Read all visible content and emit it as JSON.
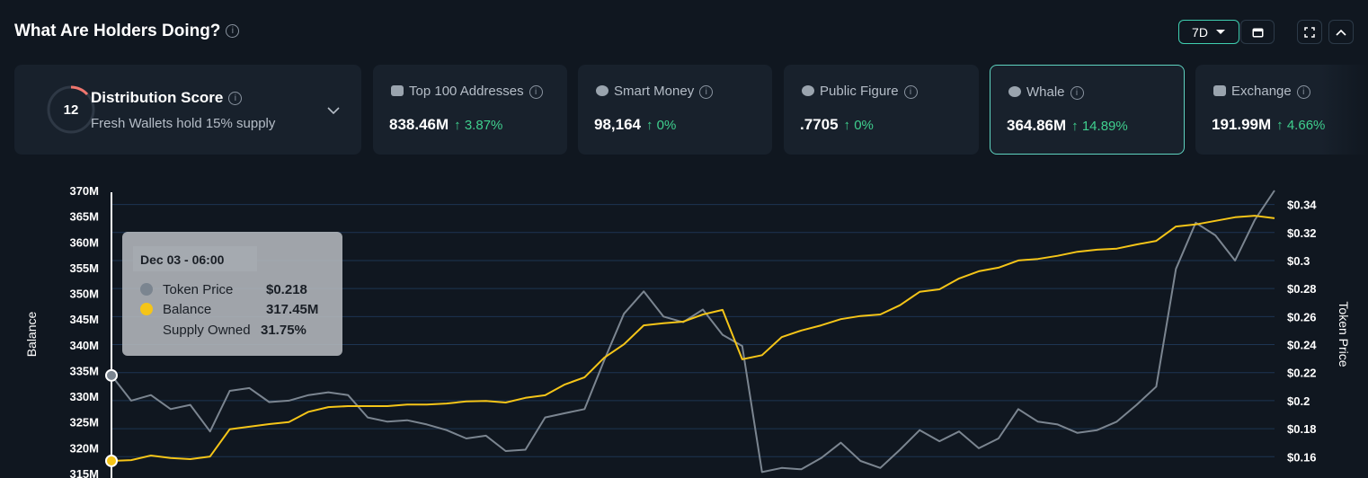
{
  "header": {
    "title": "What Are Holders Doing?",
    "period": "7D"
  },
  "score_card": {
    "score": "12",
    "title": "Distribution Score",
    "subtitle": "Fresh Wallets hold 15% supply"
  },
  "cards": [
    {
      "label": "Top 100 Addresses",
      "value": "838.46M",
      "change": "3.87%"
    },
    {
      "label": "Smart Money",
      "value": "98,164",
      "change": "0%"
    },
    {
      "label": "Public Figure",
      "value": ".7705",
      "change": "0%"
    },
    {
      "label": "Whale",
      "value": "364.86M",
      "change": "14.89%"
    },
    {
      "label": "Exchange",
      "value": "191.99M",
      "change": "4.66%"
    }
  ],
  "chart_data": {
    "type": "line",
    "ylabel": "Balance",
    "y2label": "Token Price",
    "grid": true,
    "categories": [
      null,
      null,
      null,
      null,
      null,
      null,
      null,
      null,
      null,
      null,
      null,
      null,
      null,
      null,
      null,
      null,
      null,
      null,
      null,
      null,
      null,
      null,
      null,
      null,
      null,
      null,
      null,
      null,
      null,
      null,
      null,
      null,
      null,
      null,
      null,
      null,
      null,
      null,
      null,
      null,
      null,
      null,
      null,
      null,
      null,
      null,
      null,
      null,
      null,
      null,
      null,
      null,
      null,
      null,
      null,
      null,
      null,
      null,
      null,
      null
    ],
    "ylim": [
      315000000,
      370000000
    ],
    "yticks": [
      {
        "value": 370000000,
        "label": "370M"
      },
      {
        "value": 365000000,
        "label": "365M"
      },
      {
        "value": 360000000,
        "label": "360M"
      },
      {
        "value": 355000000,
        "label": "355M"
      },
      {
        "value": 350000000,
        "label": "350M"
      },
      {
        "value": 345000000,
        "label": "345M"
      },
      {
        "value": 340000000,
        "label": "340M"
      },
      {
        "value": 335000000,
        "label": "335M"
      },
      {
        "value": 330000000,
        "label": "330M"
      },
      {
        "value": 325000000,
        "label": "325M"
      },
      {
        "value": 320000000,
        "label": "320M"
      },
      {
        "value": 315000000,
        "label": "315M"
      }
    ],
    "y2lim": [
      0.148,
      0.35
    ],
    "y2ticks": [
      {
        "value": 0.34,
        "label": "$0.34"
      },
      {
        "value": 0.32,
        "label": "$0.32"
      },
      {
        "value": 0.3,
        "label": "$0.3"
      },
      {
        "value": 0.28,
        "label": "$0.28"
      },
      {
        "value": 0.26,
        "label": "$0.26"
      },
      {
        "value": 0.24,
        "label": "$0.24"
      },
      {
        "value": 0.22,
        "label": "$0.22"
      },
      {
        "value": 0.2,
        "label": "$0.2"
      },
      {
        "value": 0.18,
        "label": "$0.18"
      },
      {
        "value": 0.16,
        "label": "$0.16"
      }
    ],
    "series": [
      {
        "name": "Token Price",
        "color": "#7b8590",
        "axis": "y2",
        "values": [
          0.218,
          0.2,
          0.204,
          0.194,
          0.197,
          0.178,
          0.207,
          0.209,
          0.199,
          0.2,
          0.204,
          0.206,
          0.204,
          0.188,
          0.185,
          0.186,
          0.183,
          0.179,
          0.173,
          0.175,
          0.164,
          0.165,
          0.188,
          0.191,
          0.194,
          0.229,
          0.262,
          0.278,
          0.26,
          0.256,
          0.265,
          0.247,
          0.239,
          0.149,
          0.152,
          0.151,
          0.159,
          0.17,
          0.157,
          0.152,
          0.165,
          0.179,
          0.171,
          0.178,
          0.166,
          0.173,
          0.194,
          0.185,
          0.183,
          0.177,
          0.179,
          0.185,
          0.197,
          0.21,
          0.294,
          0.327,
          0.318,
          0.3,
          0.329,
          0.35
        ]
      },
      {
        "name": "Balance",
        "color": "#f5c518",
        "values": [
          317450000,
          317600000,
          318500000,
          318000000,
          317800000,
          318300000,
          323600000,
          324100000,
          324600000,
          325000000,
          327000000,
          327900000,
          328100000,
          328100000,
          328100000,
          328400000,
          328400000,
          328600000,
          329000000,
          329100000,
          328800000,
          329700000,
          330200000,
          332300000,
          333700000,
          337500000,
          340100000,
          343800000,
          344200000,
          344500000,
          345900000,
          346800000,
          337200000,
          338000000,
          341500000,
          342800000,
          343800000,
          345000000,
          345600000,
          345900000,
          347700000,
          350300000,
          350800000,
          352900000,
          354300000,
          355000000,
          356400000,
          356700000,
          357300000,
          358100000,
          358500000,
          358700000,
          359500000,
          360200000,
          363000000,
          363400000,
          364100000,
          364800000,
          365100000,
          364600000
        ]
      }
    ],
    "tooltip": {
      "date": "Dec 03 - 06:00",
      "price": "$0.218",
      "balance": "317.45M",
      "supply_name": "Supply Owned",
      "supply": "31.75%"
    }
  }
}
